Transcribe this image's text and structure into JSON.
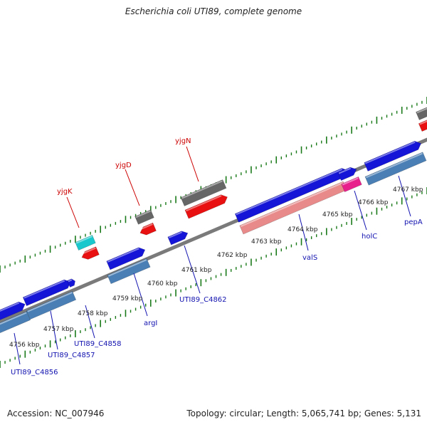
{
  "title": "Escherichia coli UTI89, complete genome",
  "footer": {
    "accession": "Accession: NC_007946",
    "summary": "Topology: circular; Length: 5,065,741 bp; Genes: 5,131"
  },
  "colors": {
    "forward_cds": "#1515d8",
    "reverse_cds": "#e81010",
    "gene_forward": "#4a7fb5",
    "gene_reverse": "#e88a8a",
    "hypothetical": "#666666",
    "trna": "#18c8cc",
    "special": "#e8208c",
    "backbone": "#7a7a7a",
    "tick": "#1a7a1a",
    "label_blue": "#1212b0",
    "label_red": "#cc0000"
  },
  "scale_labels": [
    "4756 kbp",
    "4757 kbp",
    "4758 kbp",
    "4759 kbp",
    "4760 kbp",
    "4761 kbp",
    "4762 kbp",
    "4763 kbp",
    "4764 kbp",
    "4765 kbp",
    "4766 kbp",
    "4767 kbp"
  ],
  "gene_labels_top": [
    "yjgK",
    "yjgD",
    "yjgN"
  ],
  "gene_labels_bottom": [
    "UTI89_C4856",
    "UTI89_C4857",
    "UTI89_C4858",
    "argI",
    "UTI89_C4862",
    "valS",
    "holC",
    "pepA"
  ]
}
